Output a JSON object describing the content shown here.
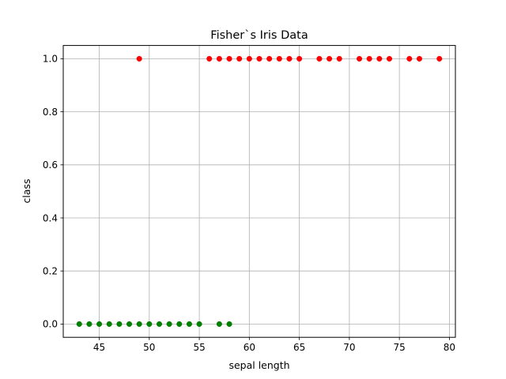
{
  "chart_data": {
    "type": "scatter",
    "title": "Fisher`s Iris Data",
    "xlabel": "sepal length",
    "ylabel": "class",
    "xlim": [
      41.4,
      80.6
    ],
    "ylim": [
      -0.05,
      1.05
    ],
    "xticks": [
      45,
      50,
      55,
      60,
      65,
      70,
      75,
      80
    ],
    "yticks": [
      0.0,
      0.2,
      0.4,
      0.6,
      0.8,
      1.0
    ],
    "xtick_labels": [
      "45",
      "50",
      "55",
      "60",
      "65",
      "70",
      "75",
      "80"
    ],
    "ytick_labels": [
      "0.0",
      "0.2",
      "0.4",
      "0.6",
      "0.8",
      "1.0"
    ],
    "grid": true,
    "series": [
      {
        "color": "#ff0000",
        "x": [
          49,
          56,
          57,
          58,
          59,
          60,
          61,
          62,
          63,
          64,
          65,
          67,
          68,
          69,
          71,
          72,
          73,
          74,
          76,
          77,
          79
        ],
        "y": [
          1,
          1,
          1,
          1,
          1,
          1,
          1,
          1,
          1,
          1,
          1,
          1,
          1,
          1,
          1,
          1,
          1,
          1,
          1,
          1,
          1
        ]
      },
      {
        "color": "#008000",
        "x": [
          43,
          44,
          45,
          46,
          47,
          48,
          49,
          50,
          51,
          52,
          53,
          54,
          55,
          57,
          58
        ],
        "y": [
          0,
          0,
          0,
          0,
          0,
          0,
          0,
          0,
          0,
          0,
          0,
          0,
          0,
          0,
          0
        ]
      }
    ]
  }
}
